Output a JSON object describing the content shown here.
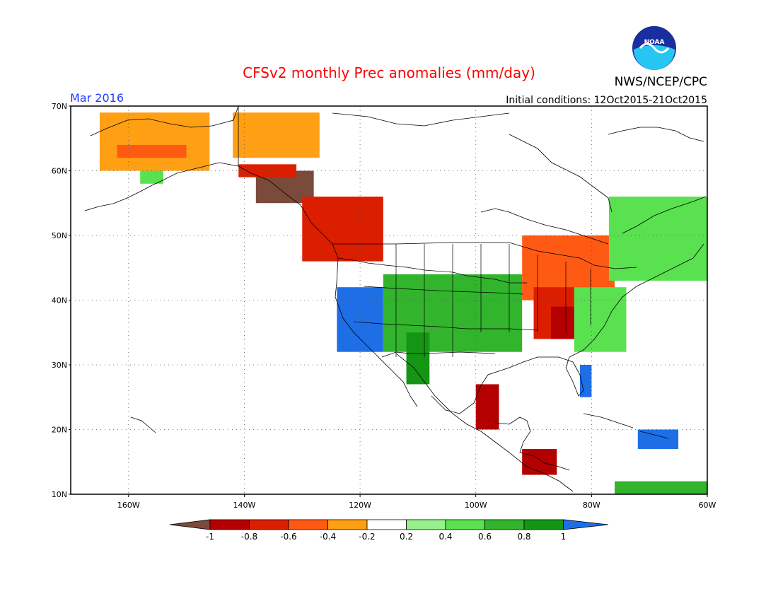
{
  "header": {
    "title": "CFSv2 monthly Prec anomalies (mm/day)",
    "month": "Mar 2016",
    "initial_conditions": "Initial conditions: 12Oct2015-21Oct2015",
    "agency": "NWS/NCEP/CPC",
    "logo_text": "NOAA"
  },
  "map": {
    "lon_range": [
      -170,
      -60
    ],
    "lat_range": [
      10,
      70
    ],
    "lat_labels": [
      "70N",
      "60N",
      "50N",
      "40N",
      "30N",
      "20N",
      "10N"
    ],
    "lon_labels": [
      "160W",
      "140W",
      "120W",
      "100W",
      "80W",
      "60W"
    ],
    "gridlines": true
  },
  "colorbar": {
    "tick_labels": [
      "-1",
      "-0.8",
      "-0.6",
      "-0.4",
      "-0.2",
      "0.2",
      "0.4",
      "0.6",
      "0.8",
      "1"
    ],
    "colors": [
      "#7a4a3a",
      "#b40000",
      "#dc1e00",
      "#ff5a14",
      "#ffa014",
      "#ffffff",
      "#96f08c",
      "#5ae150",
      "#32b42d",
      "#149614",
      "#1e6ee6"
    ]
  },
  "chart_data": {
    "type": "heatmap",
    "title": "CFSv2 monthly Prec anomalies (mm/day)",
    "units": "mm/day",
    "valid_month": "Mar 2016",
    "xlim": [
      -170,
      -60
    ],
    "ylim": [
      10,
      70
    ],
    "regions": [
      {
        "lon": [
          -165,
          -146
        ],
        "lat": [
          60,
          69
        ],
        "value": -0.3
      },
      {
        "lon": [
          -162,
          -150
        ],
        "lat": [
          62,
          64
        ],
        "value": -0.5
      },
      {
        "lon": [
          -158,
          -154
        ],
        "lat": [
          58,
          60
        ],
        "value": 0.5
      },
      {
        "lon": [
          -142,
          -127
        ],
        "lat": [
          62,
          69
        ],
        "value": -0.3
      },
      {
        "lon": [
          -138,
          -128
        ],
        "lat": [
          55,
          60
        ],
        "value": -1.0
      },
      {
        "lon": [
          -141,
          -131
        ],
        "lat": [
          59,
          61
        ],
        "value": -0.7
      },
      {
        "lon": [
          -130,
          -116
        ],
        "lat": [
          46,
          56
        ],
        "value": -0.6
      },
      {
        "lon": [
          -124,
          -116
        ],
        "lat": [
          32,
          42
        ],
        "value": 1.0
      },
      {
        "lon": [
          -116,
          -92
        ],
        "lat": [
          32,
          44
        ],
        "value": 0.6
      },
      {
        "lon": [
          -112,
          -108
        ],
        "lat": [
          27,
          35
        ],
        "value": 0.9
      },
      {
        "lon": [
          -100,
          -96
        ],
        "lat": [
          20,
          27
        ],
        "value": -0.9
      },
      {
        "lon": [
          -92,
          -76
        ],
        "lat": [
          40,
          50
        ],
        "value": -0.4
      },
      {
        "lon": [
          -90,
          -80
        ],
        "lat": [
          34,
          42
        ],
        "value": -0.7
      },
      {
        "lon": [
          -87,
          -82
        ],
        "lat": [
          34,
          39
        ],
        "value": -0.9
      },
      {
        "lon": [
          -83,
          -74
        ],
        "lat": [
          32,
          42
        ],
        "value": 0.5
      },
      {
        "lon": [
          -82,
          -80
        ],
        "lat": [
          25,
          30
        ],
        "value": 1.0
      },
      {
        "lon": [
          -77,
          -60
        ],
        "lat": [
          43,
          56
        ],
        "value": 0.5
      },
      {
        "lon": [
          -92,
          -86
        ],
        "lat": [
          13,
          17
        ],
        "value": -0.8
      },
      {
        "lon": [
          -72,
          -65
        ],
        "lat": [
          17,
          20
        ],
        "value": 1.0
      },
      {
        "lon": [
          -76,
          -60
        ],
        "lat": [
          10,
          12
        ],
        "value": 0.6
      }
    ]
  }
}
